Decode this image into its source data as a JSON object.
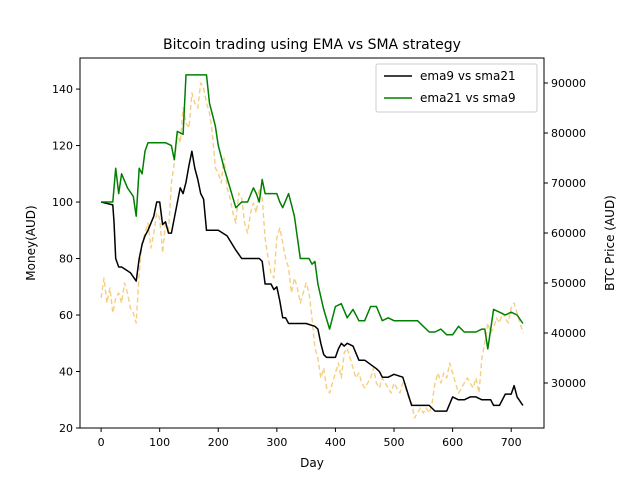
{
  "chart_data": {
    "type": "line",
    "title": "Bitcoin trading using EMA vs SMA strategy",
    "xlabel": "Day",
    "ylabel": "Money(AUD)",
    "y2label": "BTC Price (AUD)",
    "xlim": [
      -36,
      756
    ],
    "ylim": [
      20,
      151
    ],
    "y2lim": [
      21000,
      95000
    ],
    "xticks": [
      0,
      100,
      200,
      300,
      400,
      500,
      600,
      700
    ],
    "yticks": [
      20,
      40,
      60,
      80,
      100,
      120,
      140
    ],
    "y2ticks": [
      30000,
      40000,
      50000,
      60000,
      70000,
      80000,
      90000
    ],
    "legend": {
      "position": "top-right"
    },
    "series": [
      {
        "name": "ema9 vs sma21",
        "axis": "left",
        "color": "#000000",
        "style": "solid",
        "x": [
          0,
          20,
          22,
          25,
          30,
          35,
          50,
          60,
          65,
          70,
          75,
          80,
          90,
          95,
          100,
          105,
          110,
          115,
          120,
          135,
          140,
          145,
          150,
          155,
          160,
          165,
          170,
          175,
          180,
          190,
          200,
          215,
          230,
          240,
          250,
          260,
          270,
          275,
          280,
          290,
          295,
          300,
          305,
          310,
          315,
          320,
          330,
          340,
          350,
          365,
          370,
          375,
          380,
          385,
          400,
          405,
          410,
          415,
          420,
          430,
          440,
          450,
          470,
          475,
          480,
          490,
          500,
          515,
          530,
          540,
          550,
          560,
          570,
          580,
          590,
          600,
          610,
          620,
          630,
          640,
          650,
          660,
          665,
          670,
          680,
          690,
          700,
          705,
          710,
          720
        ],
        "y": [
          100,
          99,
          93,
          80,
          77,
          77,
          75,
          72,
          80,
          85,
          88,
          90,
          95,
          100,
          100,
          92,
          93,
          89,
          89,
          105,
          103,
          107,
          113,
          118,
          112,
          108,
          103,
          101,
          90,
          90,
          90,
          88,
          83,
          80,
          80,
          80,
          80,
          79,
          71,
          71,
          69,
          70,
          65,
          59,
          59,
          57,
          57,
          57,
          57,
          56,
          55,
          50,
          46,
          45,
          45,
          48,
          50,
          49,
          50,
          49,
          44,
          44,
          41,
          40,
          38,
          38,
          39,
          38,
          28,
          28,
          28,
          28,
          26,
          26,
          26,
          31,
          30,
          30,
          31,
          31,
          30,
          30,
          30,
          28,
          28,
          32,
          32,
          35,
          31,
          28
        ]
      },
      {
        "name": "ema21 vs sma9",
        "axis": "left",
        "color": "#008000",
        "style": "solid",
        "x": [
          0,
          20,
          25,
          30,
          35,
          45,
          55,
          60,
          65,
          70,
          75,
          80,
          85,
          90,
          110,
          120,
          125,
          130,
          140,
          145,
          150,
          155,
          160,
          175,
          180,
          185,
          195,
          200,
          210,
          220,
          230,
          240,
          250,
          260,
          265,
          270,
          275,
          280,
          290,
          300,
          305,
          310,
          320,
          330,
          340,
          350,
          355,
          360,
          365,
          370,
          380,
          390,
          400,
          410,
          420,
          430,
          440,
          450,
          460,
          470,
          480,
          490,
          500,
          520,
          540,
          560,
          570,
          580,
          590,
          600,
          610,
          620,
          640,
          650,
          655,
          660,
          670,
          680,
          690,
          700,
          710,
          720
        ],
        "y": [
          100,
          100,
          112,
          103,
          110,
          105,
          102,
          95,
          112,
          110,
          118,
          121,
          121,
          121,
          121,
          120,
          115,
          125,
          124,
          145,
          145,
          145,
          145,
          145,
          145,
          135,
          127,
          120,
          112,
          105,
          98,
          100,
          100,
          105,
          103,
          100,
          108,
          103,
          103,
          103,
          100,
          98,
          103,
          95,
          80,
          80,
          80,
          78,
          79,
          71,
          62,
          55,
          63,
          64,
          59,
          62,
          58,
          58,
          63,
          63,
          58,
          59,
          58,
          58,
          58,
          54,
          54,
          55,
          53,
          53,
          56,
          54,
          54,
          55,
          55,
          48,
          62,
          61,
          60,
          61,
          60,
          57
        ]
      },
      {
        "name": "BTC Price",
        "axis": "right",
        "color": "#f5c66b",
        "style": "dashed",
        "x": [
          0,
          5,
          10,
          15,
          20,
          25,
          30,
          35,
          40,
          45,
          50,
          55,
          60,
          65,
          70,
          75,
          80,
          85,
          90,
          95,
          100,
          105,
          110,
          115,
          120,
          125,
          130,
          135,
          140,
          145,
          150,
          155,
          160,
          165,
          170,
          175,
          180,
          185,
          190,
          195,
          200,
          205,
          210,
          215,
          220,
          225,
          230,
          235,
          240,
          245,
          250,
          255,
          260,
          265,
          270,
          275,
          280,
          285,
          290,
          295,
          300,
          305,
          310,
          315,
          320,
          325,
          330,
          335,
          340,
          345,
          350,
          355,
          360,
          365,
          370,
          375,
          380,
          385,
          390,
          395,
          400,
          405,
          410,
          415,
          420,
          425,
          430,
          435,
          440,
          445,
          450,
          455,
          460,
          465,
          470,
          475,
          480,
          485,
          490,
          495,
          500,
          505,
          510,
          515,
          520,
          525,
          530,
          535,
          540,
          545,
          550,
          555,
          560,
          565,
          570,
          575,
          580,
          585,
          590,
          595,
          600,
          605,
          610,
          615,
          620,
          625,
          630,
          635,
          640,
          645,
          650,
          655,
          660,
          665,
          670,
          675,
          680,
          685,
          690,
          695,
          700,
          705,
          710,
          715,
          720
        ],
        "y": [
          47000,
          51000,
          46000,
          49000,
          44000,
          47000,
          48000,
          46000,
          50000,
          48000,
          45000,
          44000,
          42000,
          52000,
          58000,
          60000,
          62000,
          57000,
          60000,
          64000,
          63000,
          56000,
          62000,
          60000,
          70000,
          74000,
          80000,
          78000,
          85000,
          82000,
          81000,
          88000,
          86000,
          85000,
          90000,
          89000,
          86000,
          84000,
          80000,
          73000,
          72000,
          70000,
          75000,
          69000,
          67000,
          64000,
          62000,
          68000,
          67000,
          62000,
          60000,
          64000,
          66000,
          64000,
          69000,
          67000,
          59000,
          55000,
          52000,
          51000,
          59000,
          61000,
          58000,
          55000,
          53000,
          48000,
          51000,
          49000,
          46000,
          48000,
          50000,
          48000,
          43000,
          37000,
          35000,
          31000,
          33000,
          29000,
          28000,
          30000,
          32000,
          34000,
          31000,
          36000,
          37000,
          35000,
          33000,
          31000,
          32000,
          30000,
          29000,
          30000,
          31000,
          33000,
          30000,
          29000,
          31000,
          30000,
          29000,
          28000,
          30000,
          29000,
          28000,
          30000,
          29000,
          27000,
          26000,
          23000,
          24000,
          25000,
          24000,
          25000,
          24000,
          26000,
          30000,
          32000,
          30000,
          32000,
          31000,
          34000,
          32000,
          30000,
          28000,
          29000,
          30000,
          31000,
          30000,
          29000,
          31000,
          28000,
          35000,
          38000,
          42000,
          40000,
          41000,
          43000,
          42000,
          44000,
          43000,
          42000,
          45000,
          46000,
          44000,
          42000,
          40000
        ]
      }
    ]
  }
}
